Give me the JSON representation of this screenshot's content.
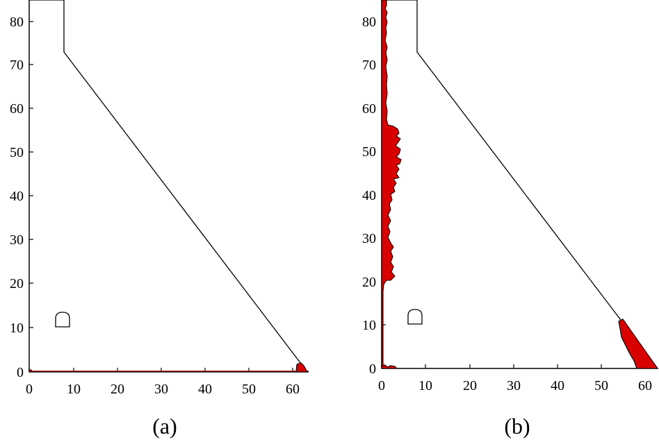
{
  "panels": [
    {
      "id": "a",
      "caption": "(a)",
      "x_ticks": [
        "0",
        "10",
        "20",
        "30",
        "40",
        "50",
        "60"
      ],
      "y_ticks": [
        "0",
        "10",
        "20",
        "30",
        "40",
        "50",
        "60",
        "70",
        "80"
      ]
    },
    {
      "id": "b",
      "caption": "(b)",
      "x_ticks": [
        "0",
        "10",
        "20",
        "30",
        "40",
        "50",
        "60"
      ],
      "y_ticks": [
        "0",
        "10",
        "20",
        "30",
        "40",
        "50",
        "60",
        "70",
        "80"
      ]
    }
  ],
  "colors": {
    "damage": "#d90000",
    "outline": "#000000"
  }
}
